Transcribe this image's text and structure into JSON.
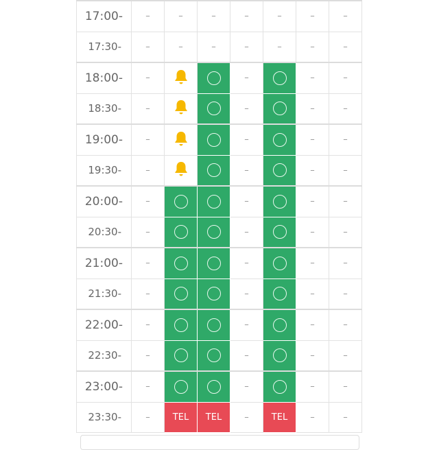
{
  "colors": {
    "available": "#2fa968",
    "tel": "#e84a55",
    "bell": "#f6b800"
  },
  "symbols": {
    "none": "–",
    "tel": "TEL"
  },
  "rows": [
    {
      "time": "17:00-",
      "cells": [
        "none",
        "none",
        "none",
        "none",
        "none",
        "none",
        "none"
      ]
    },
    {
      "time": "17:30-",
      "cells": [
        "none",
        "none",
        "none",
        "none",
        "none",
        "none",
        "none"
      ]
    },
    {
      "time": "18:00-",
      "cells": [
        "none",
        "bell",
        "ok",
        "none",
        "ok",
        "none",
        "none"
      ]
    },
    {
      "time": "18:30-",
      "cells": [
        "none",
        "bell",
        "ok",
        "none",
        "ok",
        "none",
        "none"
      ]
    },
    {
      "time": "19:00-",
      "cells": [
        "none",
        "bell",
        "ok",
        "none",
        "ok",
        "none",
        "none"
      ]
    },
    {
      "time": "19:30-",
      "cells": [
        "none",
        "bell",
        "ok",
        "none",
        "ok",
        "none",
        "none"
      ]
    },
    {
      "time": "20:00-",
      "cells": [
        "none",
        "ok",
        "ok",
        "none",
        "ok",
        "none",
        "none"
      ]
    },
    {
      "time": "20:30-",
      "cells": [
        "none",
        "ok",
        "ok",
        "none",
        "ok",
        "none",
        "none"
      ]
    },
    {
      "time": "21:00-",
      "cells": [
        "none",
        "ok",
        "ok",
        "none",
        "ok",
        "none",
        "none"
      ]
    },
    {
      "time": "21:30-",
      "cells": [
        "none",
        "ok",
        "ok",
        "none",
        "ok",
        "none",
        "none"
      ]
    },
    {
      "time": "22:00-",
      "cells": [
        "none",
        "ok",
        "ok",
        "none",
        "ok",
        "none",
        "none"
      ]
    },
    {
      "time": "22:30-",
      "cells": [
        "none",
        "ok",
        "ok",
        "none",
        "ok",
        "none",
        "none"
      ]
    },
    {
      "time": "23:00-",
      "cells": [
        "none",
        "ok",
        "ok",
        "none",
        "ok",
        "none",
        "none"
      ]
    },
    {
      "time": "23:30-",
      "cells": [
        "none",
        "tel",
        "tel",
        "none",
        "tel",
        "none",
        "none"
      ]
    }
  ]
}
